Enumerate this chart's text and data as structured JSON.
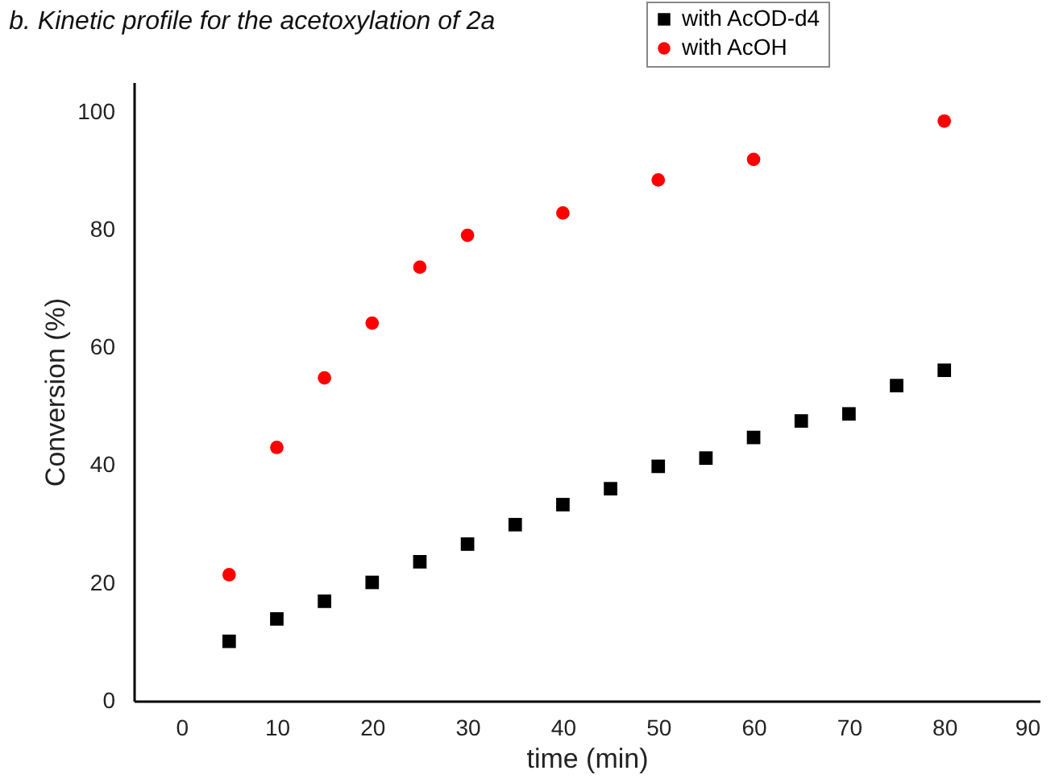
{
  "chart_data": {
    "type": "scatter",
    "title": "b. Kinetic profile for the acetoxylation of 2a",
    "xlabel": "time (min)",
    "ylabel": "Conversion (%)",
    "xlim": [
      -5,
      90
    ],
    "xticks": [
      0,
      10,
      20,
      30,
      40,
      50,
      60,
      70,
      80,
      90
    ],
    "ylim": [
      0,
      105
    ],
    "yticks": [
      0,
      20,
      40,
      60,
      80,
      100
    ],
    "grid": false,
    "legend": "top right",
    "series": [
      {
        "name": "with AcOD-d4",
        "color": "#000000",
        "marker": "square",
        "x": [
          5,
          10,
          15,
          20,
          25,
          30,
          35,
          40,
          45,
          50,
          55,
          60,
          65,
          70,
          75,
          80
        ],
        "values": [
          10.1,
          13.9,
          16.9,
          20.1,
          23.6,
          26.6,
          29.9,
          33.3,
          36,
          39.8,
          41.2,
          44.7,
          47.5,
          48.7,
          53.5,
          56.1
        ]
      },
      {
        "name": "with AcOH",
        "color": "#ff0000",
        "marker": "circle",
        "x": [
          5,
          10,
          15,
          20,
          25,
          30,
          40,
          50,
          60,
          80
        ],
        "values": [
          21.4,
          43,
          54.8,
          64.1,
          73.6,
          79,
          82.8,
          88.4,
          91.9,
          98.4
        ]
      }
    ]
  }
}
